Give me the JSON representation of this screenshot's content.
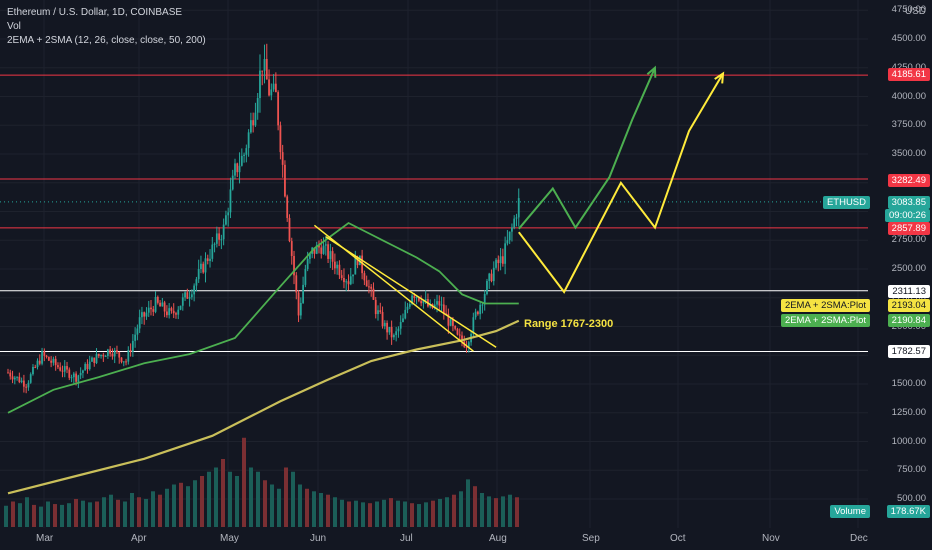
{
  "header": {
    "title": "Ethereum / U.S. Dollar, 1D, COINBASE",
    "vol": "Vol",
    "indicator": "2EMA + 2SMA (12, 26, close, close, 50, 200)"
  },
  "currency": "USD",
  "annotation": "Range 1767-2300",
  "colors": {
    "background": "#131722",
    "up": "#26a69a",
    "down": "#ef5350",
    "ema": "#4caf50",
    "sma": "#e1d463",
    "projection_green": "#4caf50",
    "projection_yellow": "#ffeb3b"
  },
  "tags": {
    "resistance_top": "4185.61",
    "resistance_mid": "3282.49",
    "symbol": "ETHUSD",
    "price": "3083.85",
    "countdown": "09:00:26",
    "support_high": "2857.89",
    "range_top": "2311.13",
    "sma_plot_label": "2EMA + 2SMA:Plot",
    "sma_plot_value": "2193.04",
    "ema_plot_label": "2EMA + 2SMA:Plot",
    "ema_plot_value": "2190.84",
    "range_bottom": "1782.57",
    "volume_label": "Volume",
    "volume_value": "178.67K"
  },
  "chart_data": {
    "type": "candlestick",
    "x_labels": [
      "Mar",
      "Apr",
      "May",
      "Jun",
      "Jul",
      "Aug",
      "Sep",
      "Oct",
      "Nov",
      "Dec"
    ],
    "y_ticks": [
      "4750.00",
      "4500.00",
      "4250.00",
      "4000.00",
      "3750.00",
      "3500.00",
      "3250.00",
      "3000.00",
      "2750.00",
      "2500.00",
      "2250.00",
      "2000.00",
      "1750.00",
      "1500.00",
      "1250.00",
      "1000.00",
      "750.00",
      "500.00"
    ],
    "ylim": [
      320,
      4850
    ],
    "horizontal_levels": [
      4185.61,
      3282.49,
      2857.89,
      2311.13,
      1782.57
    ],
    "current_price": 3083.85,
    "price_path": [
      [
        0,
        1600
      ],
      [
        8,
        1500
      ],
      [
        15,
        1750
      ],
      [
        22,
        1650
      ],
      [
        30,
        1560
      ],
      [
        38,
        1720
      ],
      [
        45,
        1800
      ],
      [
        52,
        1700
      ],
      [
        58,
        2050
      ],
      [
        65,
        2200
      ],
      [
        72,
        2100
      ],
      [
        80,
        2300
      ],
      [
        88,
        2600
      ],
      [
        95,
        2850
      ],
      [
        100,
        3350
      ],
      [
        104,
        3500
      ],
      [
        108,
        3850
      ],
      [
        112,
        4300
      ],
      [
        115,
        4050
      ],
      [
        118,
        4000
      ],
      [
        121,
        3400
      ],
      [
        124,
        2800
      ],
      [
        128,
        2100
      ],
      [
        131,
        2500
      ],
      [
        134,
        2650
      ],
      [
        138,
        2700
      ],
      [
        142,
        2600
      ],
      [
        146,
        2500
      ],
      [
        150,
        2400
      ],
      [
        154,
        2600
      ],
      [
        158,
        2400
      ],
      [
        162,
        2150
      ],
      [
        166,
        2000
      ],
      [
        170,
        1900
      ],
      [
        174,
        2050
      ],
      [
        178,
        2300
      ],
      [
        182,
        2250
      ],
      [
        186,
        2150
      ],
      [
        190,
        2200
      ],
      [
        194,
        2050
      ],
      [
        198,
        1900
      ],
      [
        202,
        1850
      ],
      [
        206,
        2100
      ],
      [
        210,
        2300
      ],
      [
        214,
        2500
      ],
      [
        218,
        2600
      ],
      [
        222,
        2850
      ],
      [
        225,
        3083
      ]
    ],
    "volume": [
      250,
      300,
      280,
      350,
      260,
      240,
      300,
      270,
      260,
      280,
      330,
      310,
      290,
      300,
      350,
      380,
      320,
      300,
      400,
      350,
      330,
      420,
      380,
      450,
      500,
      520,
      480,
      550,
      600,
      650,
      700,
      800,
      650,
      600,
      1050,
      700,
      650,
      550,
      500,
      450,
      700,
      650,
      500,
      450,
      420,
      400,
      380,
      350,
      320,
      300,
      310,
      290,
      280,
      300,
      320,
      340,
      310,
      300,
      280,
      270,
      290,
      310,
      330,
      350,
      380,
      420,
      560,
      480,
      400,
      360,
      340,
      360,
      380,
      350
    ],
    "ema_path": [
      [
        0,
        1250
      ],
      [
        20,
        1450
      ],
      [
        40,
        1560
      ],
      [
        60,
        1680
      ],
      [
        80,
        1760
      ],
      [
        100,
        1900
      ],
      [
        120,
        2350
      ],
      [
        135,
        2680
      ],
      [
        150,
        2900
      ],
      [
        160,
        2800
      ],
      [
        170,
        2700
      ],
      [
        180,
        2600
      ],
      [
        190,
        2480
      ],
      [
        200,
        2280
      ],
      [
        210,
        2200
      ],
      [
        225,
        2200
      ]
    ],
    "sma_path": [
      [
        0,
        550
      ],
      [
        30,
        700
      ],
      [
        60,
        850
      ],
      [
        90,
        1050
      ],
      [
        120,
        1350
      ],
      [
        140,
        1530
      ],
      [
        160,
        1700
      ],
      [
        180,
        1800
      ],
      [
        200,
        1880
      ],
      [
        215,
        1960
      ],
      [
        225,
        2050
      ]
    ],
    "projection_green": [
      [
        225,
        2850
      ],
      [
        240,
        3200
      ],
      [
        250,
        2860
      ],
      [
        265,
        3300
      ],
      [
        275,
        3800
      ],
      [
        285,
        4250
      ]
    ],
    "projection_yellow": [
      [
        225,
        2820
      ],
      [
        245,
        2300
      ],
      [
        270,
        3250
      ],
      [
        285,
        2860
      ],
      [
        300,
        3700
      ],
      [
        315,
        4200
      ]
    ],
    "triangle_lines": [
      [
        [
          135,
          2880
        ],
        [
          205,
          1785
        ]
      ],
      [
        [
          140,
          2780
        ],
        [
          215,
          1820
        ]
      ]
    ]
  }
}
